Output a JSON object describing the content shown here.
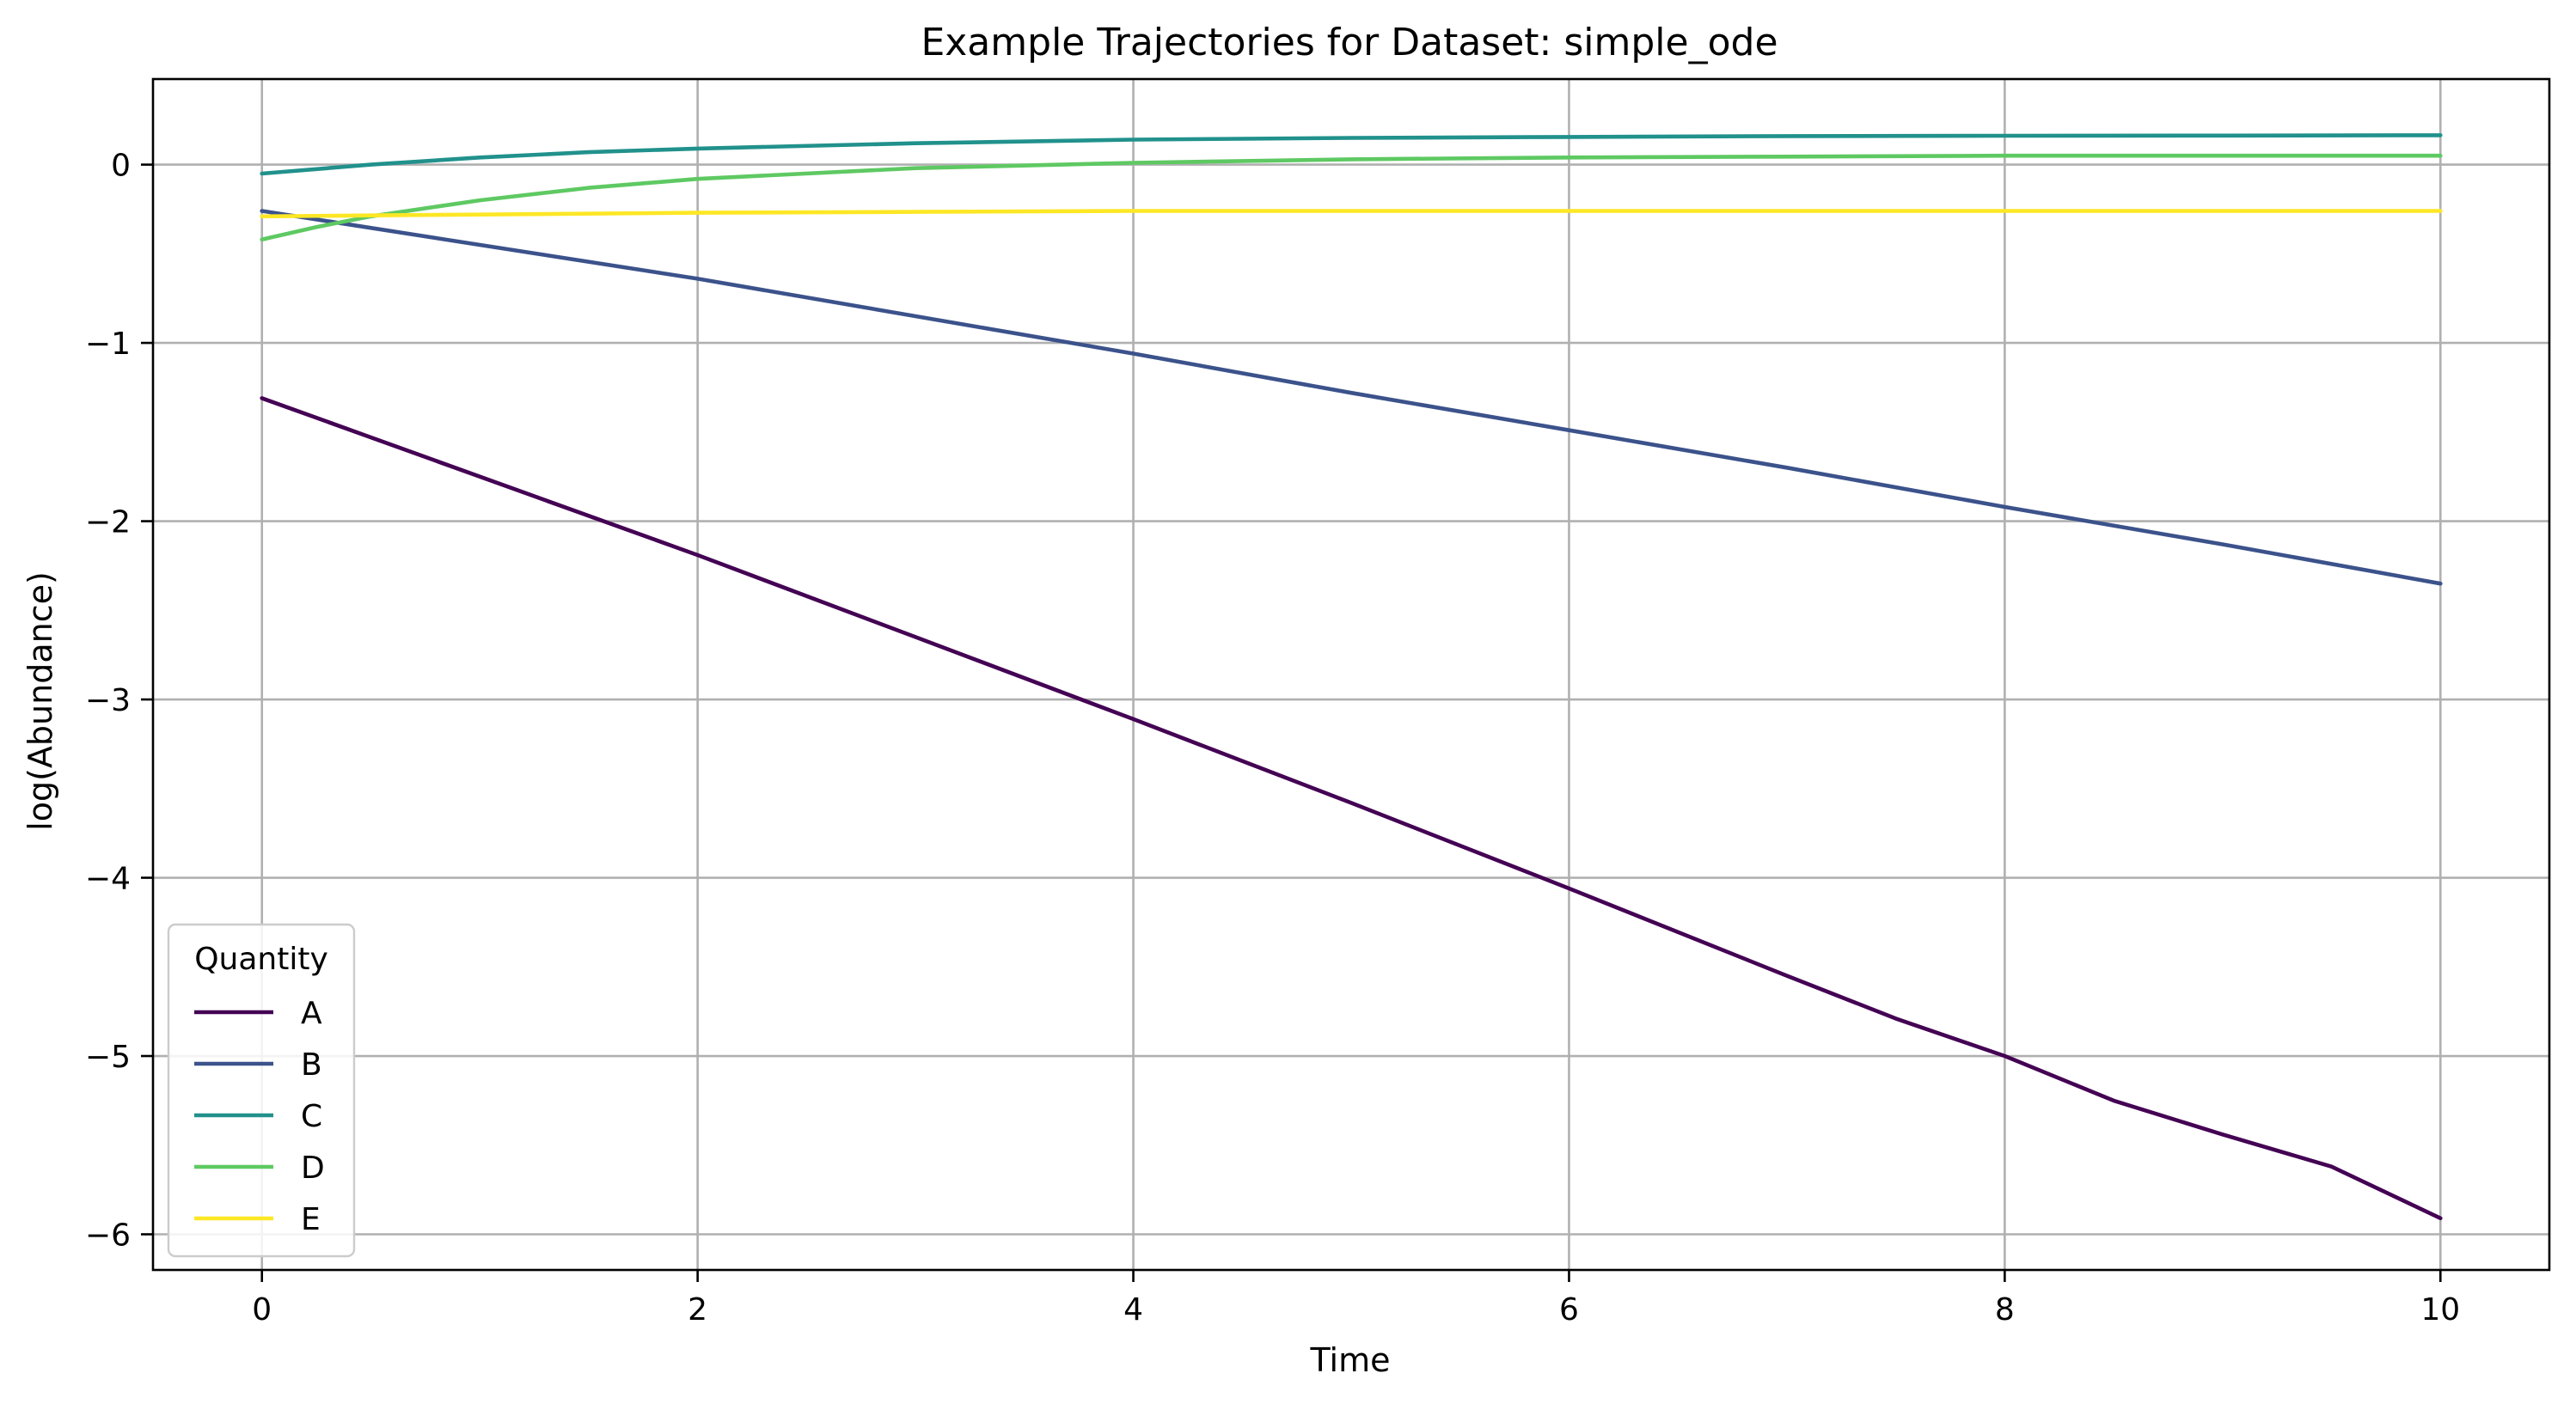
{
  "chart_data": {
    "type": "line",
    "title": "Example Trajectories for Dataset: simple_ode",
    "xlabel": "Time",
    "ylabel": "log(Abundance)",
    "xlim": [
      -0.5,
      10.5
    ],
    "ylim": [
      -6.2,
      0.48
    ],
    "xticks": [
      0,
      2,
      4,
      6,
      8,
      10
    ],
    "yticks": [
      0,
      -1,
      -2,
      -3,
      -4,
      -5,
      -6
    ],
    "grid": true,
    "legend": {
      "title": "Quantity",
      "position": "lower-left"
    },
    "series": [
      {
        "name": "A",
        "color": "#440154",
        "x": [
          0,
          1,
          2,
          3,
          4,
          5,
          6,
          7,
          7.5,
          8,
          8.5,
          9,
          9.5,
          10
        ],
        "y": [
          -1.31,
          -1.75,
          -2.19,
          -2.65,
          -3.11,
          -3.58,
          -4.06,
          -4.55,
          -4.79,
          -5.0,
          -5.25,
          -5.44,
          -5.62,
          -5.91
        ]
      },
      {
        "name": "B",
        "color": "#3b528b",
        "x": [
          0,
          1,
          2,
          3,
          4,
          5,
          6,
          7,
          8,
          9,
          10
        ],
        "y": [
          -0.26,
          -0.45,
          -0.64,
          -0.85,
          -1.06,
          -1.28,
          -1.49,
          -1.7,
          -1.92,
          -2.13,
          -2.35
        ]
      },
      {
        "name": "C",
        "color": "#21918c",
        "x": [
          0,
          0.5,
          1,
          1.5,
          2,
          3,
          4,
          5,
          6,
          7,
          8,
          9,
          10
        ],
        "y": [
          -0.05,
          0.0,
          0.04,
          0.07,
          0.09,
          0.12,
          0.14,
          0.15,
          0.155,
          0.16,
          0.162,
          0.163,
          0.165
        ]
      },
      {
        "name": "D",
        "color": "#5ec962",
        "x": [
          0,
          0.25,
          0.5,
          1,
          1.5,
          2,
          3,
          4,
          5,
          6,
          7,
          8,
          9,
          10
        ],
        "y": [
          -0.42,
          -0.35,
          -0.29,
          -0.2,
          -0.13,
          -0.08,
          -0.02,
          0.01,
          0.03,
          0.04,
          0.045,
          0.05,
          0.05,
          0.05
        ]
      },
      {
        "name": "E",
        "color": "#fde725",
        "x": [
          0,
          0.5,
          1,
          2,
          3,
          4,
          5,
          6,
          7,
          8,
          9,
          10
        ],
        "y": [
          -0.29,
          -0.285,
          -0.28,
          -0.27,
          -0.265,
          -0.26,
          -0.26,
          -0.26,
          -0.26,
          -0.26,
          -0.26,
          -0.26
        ]
      }
    ]
  }
}
